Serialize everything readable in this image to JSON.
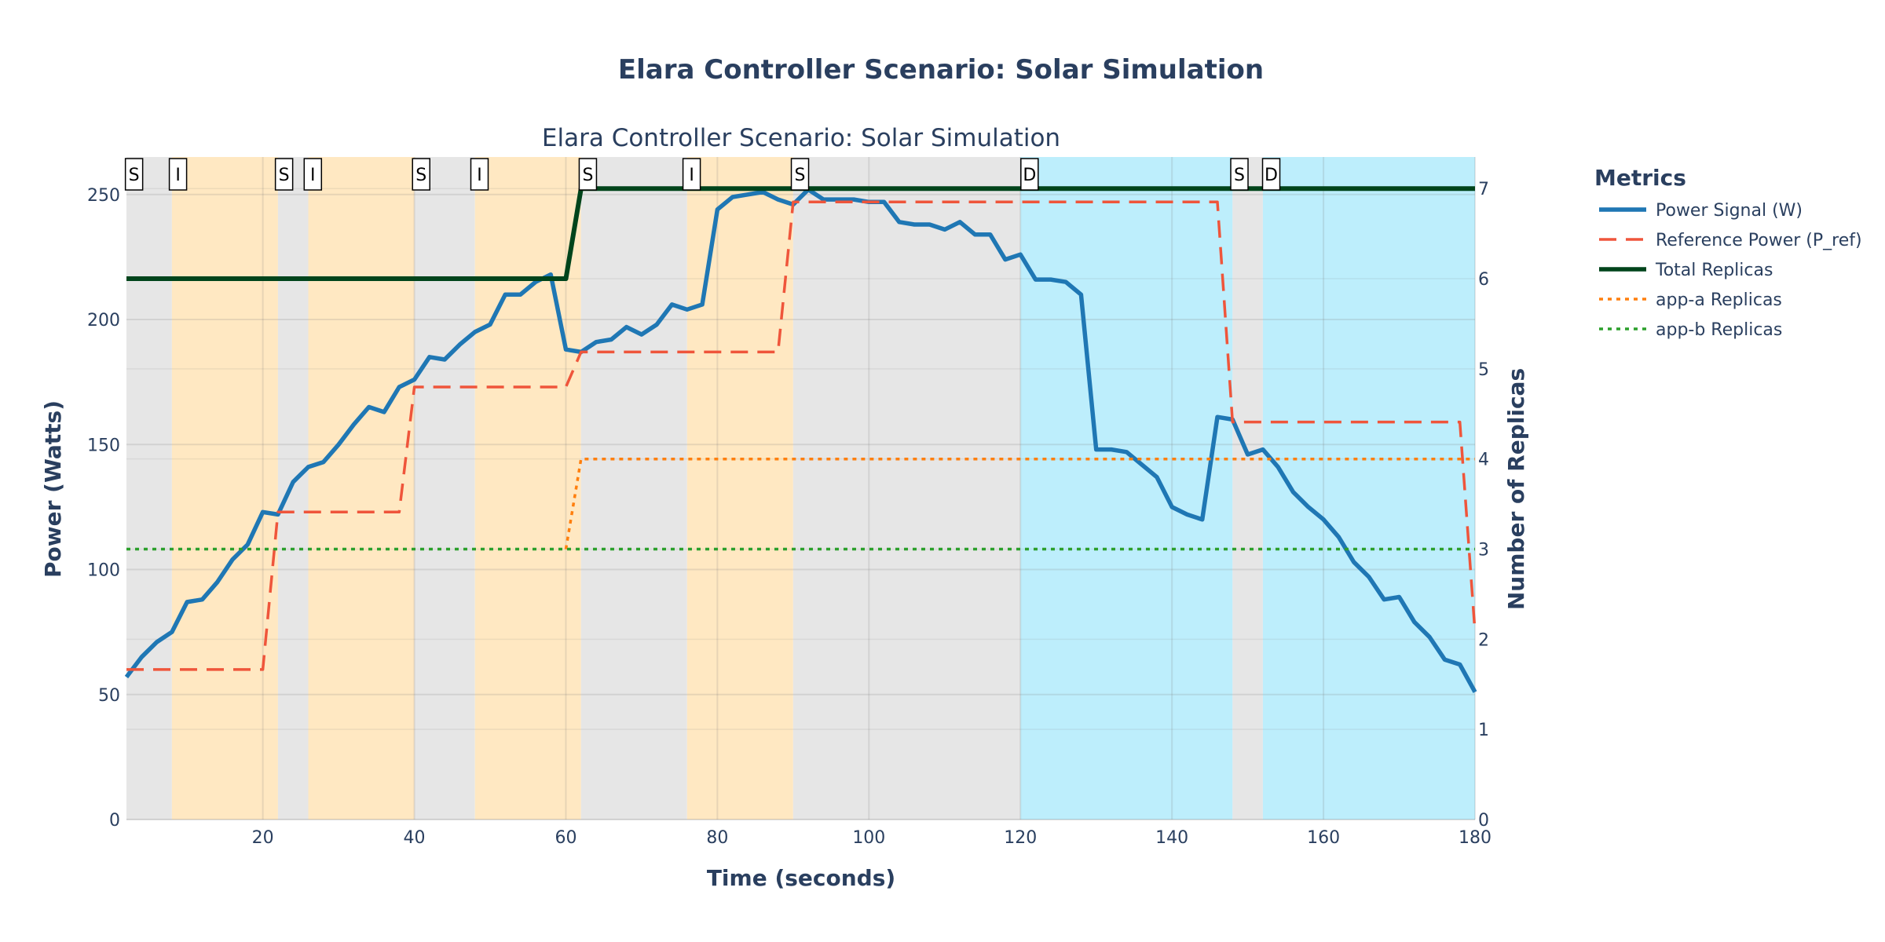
{
  "chart_data": {
    "type": "line",
    "title": "Elara Controller Scenario: Solar Simulation",
    "subtitle": "Elara Controller Scenario: Solar Simulation",
    "xlabel": "Time (seconds)",
    "ylabel": "Power (Watts)",
    "y2label": "Number of Replicas",
    "xlim": [
      2,
      180
    ],
    "ylim": [
      0,
      265
    ],
    "y2lim": [
      0,
      7.35
    ],
    "x_ticks": [
      20,
      40,
      60,
      80,
      100,
      120,
      140,
      160,
      180
    ],
    "y_ticks": [
      0,
      50,
      100,
      150,
      200,
      250
    ],
    "y2_ticks": [
      0,
      1,
      2,
      3,
      4,
      5,
      6,
      7
    ],
    "grid": true,
    "legend": {
      "title": "Metrics",
      "placement": "right"
    },
    "regions": [
      {
        "start": 2,
        "end": 8,
        "color": "#e6e6e6"
      },
      {
        "start": 8,
        "end": 22,
        "color": "#ffe8c2"
      },
      {
        "start": 22,
        "end": 26,
        "color": "#e6e6e6"
      },
      {
        "start": 26,
        "end": 40,
        "color": "#ffe8c2"
      },
      {
        "start": 40,
        "end": 48,
        "color": "#e6e6e6"
      },
      {
        "start": 48,
        "end": 62,
        "color": "#ffe8c2"
      },
      {
        "start": 62,
        "end": 76,
        "color": "#e6e6e6"
      },
      {
        "start": 76,
        "end": 90,
        "color": "#ffe8c2"
      },
      {
        "start": 90,
        "end": 120,
        "color": "#e6e6e6"
      },
      {
        "start": 120,
        "end": 148,
        "color": "#bdeefc"
      },
      {
        "start": 148,
        "end": 152,
        "color": "#e6e6e6"
      },
      {
        "start": 152,
        "end": 180,
        "color": "#bdeefc"
      }
    ],
    "markers": [
      {
        "x": 3,
        "label": "S"
      },
      {
        "x": 8.8,
        "label": "I"
      },
      {
        "x": 22.8,
        "label": "S"
      },
      {
        "x": 26.6,
        "label": "I"
      },
      {
        "x": 40.9,
        "label": "S"
      },
      {
        "x": 48.6,
        "label": "I"
      },
      {
        "x": 62.9,
        "label": "S"
      },
      {
        "x": 76.6,
        "label": "I"
      },
      {
        "x": 90.9,
        "label": "S"
      },
      {
        "x": 121.2,
        "label": "D"
      },
      {
        "x": 148.9,
        "label": "S"
      },
      {
        "x": 153.1,
        "label": "D"
      }
    ],
    "series": [
      {
        "name": "Power Signal (W)",
        "axis": "y",
        "color": "#1f77b4",
        "dash": "solid",
        "x": [
          2,
          4,
          6,
          8,
          10,
          12,
          14,
          16,
          18,
          20,
          22,
          24,
          26,
          28,
          30,
          32,
          34,
          36,
          38,
          40,
          42,
          44,
          46,
          48,
          50,
          52,
          54,
          56,
          58,
          60,
          62,
          64,
          66,
          68,
          70,
          72,
          74,
          76,
          78,
          80,
          82,
          84,
          86,
          88,
          90,
          92,
          94,
          96,
          98,
          100,
          102,
          104,
          106,
          108,
          110,
          112,
          114,
          116,
          118,
          120,
          122,
          124,
          126,
          128,
          130,
          132,
          134,
          136,
          138,
          140,
          142,
          144,
          146,
          148,
          150,
          152,
          154,
          156,
          158,
          160,
          162,
          164,
          166,
          168,
          170,
          172,
          174,
          176,
          178,
          180
        ],
        "values": [
          57,
          65,
          71,
          75,
          87,
          88,
          95,
          104,
          110,
          123,
          122,
          135,
          141,
          143,
          150,
          158,
          165,
          163,
          173,
          176,
          185,
          184,
          190,
          195,
          198,
          210,
          210,
          215,
          218,
          188,
          187,
          191,
          192,
          197,
          194,
          198,
          206,
          204,
          206,
          244,
          249,
          250,
          251,
          248,
          246,
          252,
          248,
          248,
          248,
          247,
          247,
          239,
          238,
          238,
          236,
          239,
          234,
          234,
          224,
          226,
          216,
          216,
          215,
          210,
          148,
          148,
          147,
          142,
          137,
          125,
          122,
          120,
          161,
          160,
          146,
          148,
          141,
          131,
          125,
          120,
          113,
          103,
          97,
          88,
          89,
          79,
          73,
          64,
          62,
          51
        ]
      },
      {
        "name": "Reference Power (P_ref)",
        "axis": "y",
        "color": "#ef553b",
        "dash": "dash",
        "x": [
          2,
          20,
          22,
          38,
          40,
          60,
          62,
          88,
          90,
          146,
          148,
          178,
          180
        ],
        "values": [
          60,
          60,
          123,
          123,
          173,
          173,
          187,
          187,
          247,
          247,
          159,
          159,
          75
        ]
      },
      {
        "name": "Total Replicas",
        "axis": "y2",
        "color": "#00441b",
        "dash": "solid",
        "x": [
          2,
          60,
          62,
          180
        ],
        "values": [
          6,
          6,
          7,
          7
        ]
      },
      {
        "name": "app-a Replicas",
        "axis": "y2",
        "color": "#ff7f0e",
        "dash": "dot",
        "x": [
          60,
          62,
          180
        ],
        "values": [
          3,
          4,
          4
        ]
      },
      {
        "name": "app-b Replicas",
        "axis": "y2",
        "color": "#2ca02c",
        "dash": "dot",
        "x": [
          2,
          180
        ],
        "values": [
          3,
          3
        ]
      }
    ]
  }
}
